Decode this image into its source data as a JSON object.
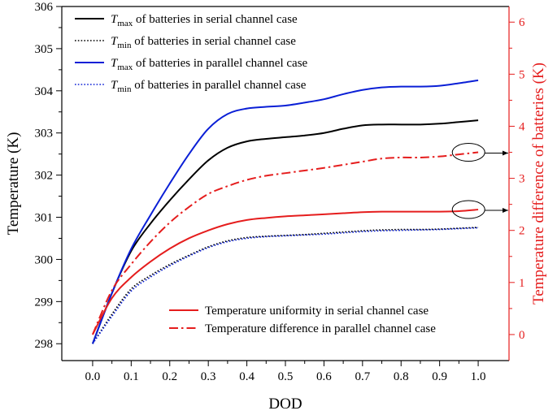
{
  "chart_data": {
    "type": "line",
    "xlabel": "DOD",
    "ylabel_left": "Temperature (K)",
    "ylabel_right": "Temperature difference of batteries (K)",
    "xlim": [
      -0.08,
      1.08
    ],
    "ylim_left": [
      297.6,
      306
    ],
    "ylim_right": [
      -0.5,
      6.3
    ],
    "x_ticks": [
      "0.0",
      "0.1",
      "0.2",
      "0.3",
      "0.4",
      "0.5",
      "0.6",
      "0.7",
      "0.8",
      "0.9",
      "1.0"
    ],
    "y_ticks_left": [
      "298",
      "299",
      "300",
      "301",
      "302",
      "303",
      "304",
      "305",
      "306"
    ],
    "y_ticks_right": [
      "0",
      "1",
      "2",
      "3",
      "4",
      "5",
      "6"
    ],
    "colors": {
      "black": "#000000",
      "blue": "#0a1fd6",
      "red": "#e51d1d"
    },
    "x": [
      0,
      0.05,
      0.1,
      0.15,
      0.2,
      0.25,
      0.3,
      0.35,
      0.4,
      0.45,
      0.5,
      0.55,
      0.6,
      0.65,
      0.7,
      0.75,
      0.8,
      0.85,
      0.9,
      0.95,
      1.0
    ],
    "series": [
      {
        "name": "Tmax of batteries in serial channel case",
        "label_prefix": "T",
        "label_sub": "max",
        "label_suffix": " of batteries in serial channel case",
        "axis": "left",
        "color": "black",
        "dash": "solid",
        "values": [
          298.0,
          299.2,
          300.2,
          300.85,
          301.4,
          301.9,
          302.35,
          302.65,
          302.8,
          302.86,
          302.9,
          302.94,
          303.0,
          303.1,
          303.18,
          303.2,
          303.2,
          303.2,
          303.22,
          303.26,
          303.3
        ]
      },
      {
        "name": "Tmin of batteries in serial channel case",
        "label_prefix": "T",
        "label_sub": "min",
        "label_suffix": " of batteries in serial channel case",
        "axis": "left",
        "color": "black",
        "dash": "dotted",
        "values": [
          298.0,
          298.7,
          299.3,
          299.62,
          299.88,
          300.1,
          300.3,
          300.44,
          300.52,
          300.55,
          300.57,
          300.59,
          300.62,
          300.65,
          300.68,
          300.7,
          300.71,
          300.71,
          300.72,
          300.74,
          300.76
        ]
      },
      {
        "name": "Tmax of batteries in parallel channel case",
        "label_prefix": "T",
        "label_sub": "max",
        "label_suffix": " of batteries in parallel channel case",
        "axis": "left",
        "color": "blue",
        "dash": "solid",
        "values": [
          298.0,
          299.2,
          300.25,
          301.05,
          301.8,
          302.5,
          303.1,
          303.45,
          303.58,
          303.62,
          303.65,
          303.72,
          303.8,
          303.92,
          304.02,
          304.08,
          304.1,
          304.1,
          304.12,
          304.18,
          304.25
        ]
      },
      {
        "name": "Tmin of batteries in parallel channel case",
        "label_prefix": "T",
        "label_sub": "min",
        "label_suffix": " of batteries in parallel channel case",
        "axis": "left",
        "color": "blue",
        "dash": "dotted",
        "values": [
          298.0,
          298.65,
          299.25,
          299.58,
          299.85,
          300.08,
          300.28,
          300.42,
          300.5,
          300.54,
          300.56,
          300.58,
          300.6,
          300.63,
          300.66,
          300.68,
          300.69,
          300.7,
          300.71,
          300.73,
          300.75
        ]
      },
      {
        "name": "Temperature uniformity in serial channel case",
        "label_prefix": "",
        "label_sub": "",
        "label_suffix": "Temperature uniformity in serial channel case",
        "axis": "right",
        "color": "red",
        "dash": "solid",
        "values": [
          0.0,
          0.7,
          1.1,
          1.4,
          1.65,
          1.85,
          2.0,
          2.12,
          2.2,
          2.24,
          2.27,
          2.29,
          2.31,
          2.33,
          2.35,
          2.36,
          2.36,
          2.36,
          2.36,
          2.37,
          2.4
        ]
      },
      {
        "name": "Temperature difference in parallel channel case",
        "label_prefix": "",
        "label_sub": "",
        "label_suffix": "Temperature difference in parallel channel case",
        "axis": "right",
        "color": "red",
        "dash": "dashdot",
        "values": [
          0.0,
          0.85,
          1.35,
          1.78,
          2.15,
          2.45,
          2.7,
          2.85,
          2.97,
          3.05,
          3.1,
          3.15,
          3.2,
          3.26,
          3.32,
          3.38,
          3.4,
          3.4,
          3.42,
          3.46,
          3.5
        ]
      }
    ],
    "annotations": [
      {
        "name": "ellipse-max-diff",
        "x": 0.975,
        "axis": "right",
        "y": 3.5,
        "arrow": "right"
      },
      {
        "name": "ellipse-uniformity",
        "x": 0.975,
        "axis": "right",
        "y": 2.4,
        "arrow": "right"
      }
    ],
    "legend_upper": "top-left",
    "legend_lower": "bottom-right"
  }
}
